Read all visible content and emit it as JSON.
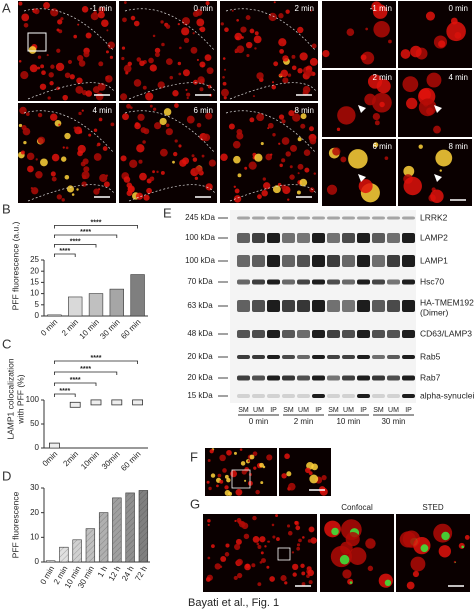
{
  "caption": "Bayati et al., Fig. 1",
  "panels": {
    "A": {
      "letter": "A",
      "times": [
        "-1 min",
        "0 min",
        "2 min",
        "4 min",
        "6 min",
        "8 min"
      ],
      "zoom_times": [
        "-1 min",
        "0 min",
        "2 min",
        "4 min",
        "6 min",
        "8 min"
      ]
    },
    "E": {
      "letter": "E",
      "markers": [
        "245 kDa",
        "100 kDa",
        "100 kDa",
        "70 kDa",
        "63 kDa",
        "48 kDa",
        "20 kDa",
        "20 kDa",
        "15 kDa"
      ],
      "proteins": [
        [
          "LRRK2"
        ],
        [
          "LAMP2"
        ],
        [
          "LAMP1"
        ],
        [
          "Hsc70"
        ],
        [
          "HA-TMEM192",
          "(Dimer)"
        ],
        [
          "CD63/LAMP3"
        ],
        [
          "Rab5"
        ],
        [
          "Rab7"
        ],
        [
          "alpha-synuclein"
        ]
      ],
      "lanes": [
        "SM",
        "UM",
        "IP"
      ],
      "times": [
        "0 min",
        "2 min",
        "10 min",
        "30 min"
      ]
    },
    "F": {
      "letter": "F"
    },
    "G": {
      "letter": "G",
      "views": [
        "Confocal",
        "STED"
      ]
    }
  },
  "chart_data": [
    {
      "type": "bar",
      "letter": "B",
      "ylabel": [
        "PFF fluorescence (a.u.)"
      ],
      "categories": [
        "0 min",
        "2 min",
        "10 min",
        "30 min",
        "60 min"
      ],
      "values": [
        0.5,
        8.5,
        10,
        12,
        18.5
      ],
      "colors": [
        "#ffffff",
        "#d9d9d9",
        "#c0c0c0",
        "#a6a6a6",
        "#7f7f7f"
      ],
      "ylim": [
        0,
        25
      ],
      "yticks": [
        0,
        5,
        10,
        15,
        20,
        25
      ],
      "annotations": [
        {
          "text": "****",
          "between": [
            "0 min",
            "2 min"
          ]
        },
        {
          "text": "****",
          "between": [
            "0 min",
            "10 min"
          ]
        },
        {
          "text": "****",
          "between": [
            "0 min",
            "30 min"
          ]
        },
        {
          "text": "****",
          "between": [
            "0 min",
            "60 min"
          ]
        }
      ]
    },
    {
      "type": "dot",
      "letter": "C",
      "ylabel": [
        "LAMP1 colocalization",
        "with PFF (%)"
      ],
      "categories": [
        "0min",
        "2min",
        "10min",
        "30min",
        "60 min"
      ],
      "values": [
        5,
        90,
        95,
        95,
        95
      ],
      "color": "#333333",
      "ylim": [
        0,
        100
      ],
      "yticks": [
        0,
        50,
        100
      ],
      "annotations": [
        {
          "text": "****",
          "between": [
            "0min",
            "2min"
          ]
        },
        {
          "text": "****",
          "between": [
            "0min",
            "10min"
          ]
        },
        {
          "text": "****",
          "between": [
            "0min",
            "30min"
          ]
        },
        {
          "text": "****",
          "between": [
            "0min",
            "60 min"
          ]
        }
      ]
    },
    {
      "type": "bar",
      "letter": "D",
      "ylabel": [
        "PFF fluorescence"
      ],
      "hatch": true,
      "categories": [
        "0 min",
        "2 min",
        "10 min",
        "30 min",
        "1 h",
        "12 h",
        "24 h",
        "72 h"
      ],
      "values": [
        0.5,
        6,
        9,
        13.5,
        20,
        26,
        28,
        29
      ],
      "colors": [
        "#ffffff",
        "#e0e0e0",
        "#d0d0d0",
        "#c0c0c0",
        "#b0b0b0",
        "#a0a0a0",
        "#909090",
        "#808080"
      ],
      "ylim": [
        0,
        30
      ],
      "yticks": [
        0,
        10,
        20,
        30
      ]
    }
  ]
}
